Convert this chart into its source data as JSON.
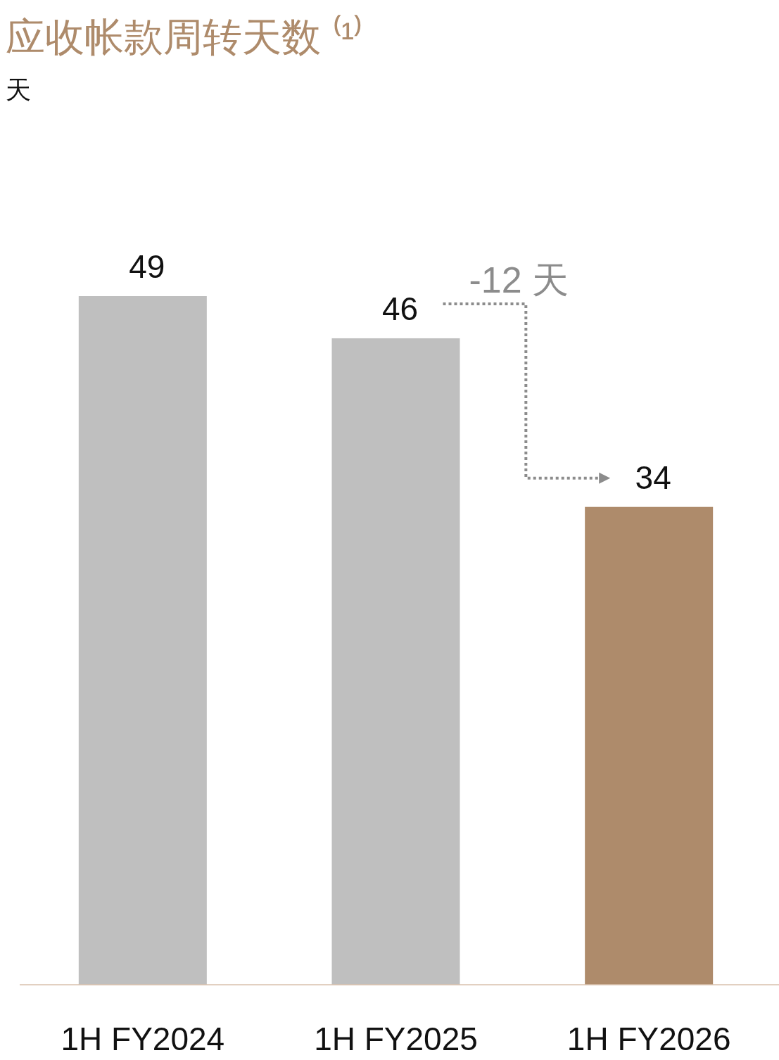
{
  "chart_data": {
    "type": "bar",
    "title": "应收帐款周转天数 ⁽¹⁾",
    "subtitle": "天",
    "categories": [
      "1H FY2024",
      "1H FY2025",
      "1H FY2026"
    ],
    "values": [
      49,
      46,
      34
    ],
    "colors": [
      "#bfbfbf",
      "#bfbfbf",
      "#ae8b6b"
    ],
    "data_labels": true,
    "annotations": [
      "-12 天"
    ]
  }
}
